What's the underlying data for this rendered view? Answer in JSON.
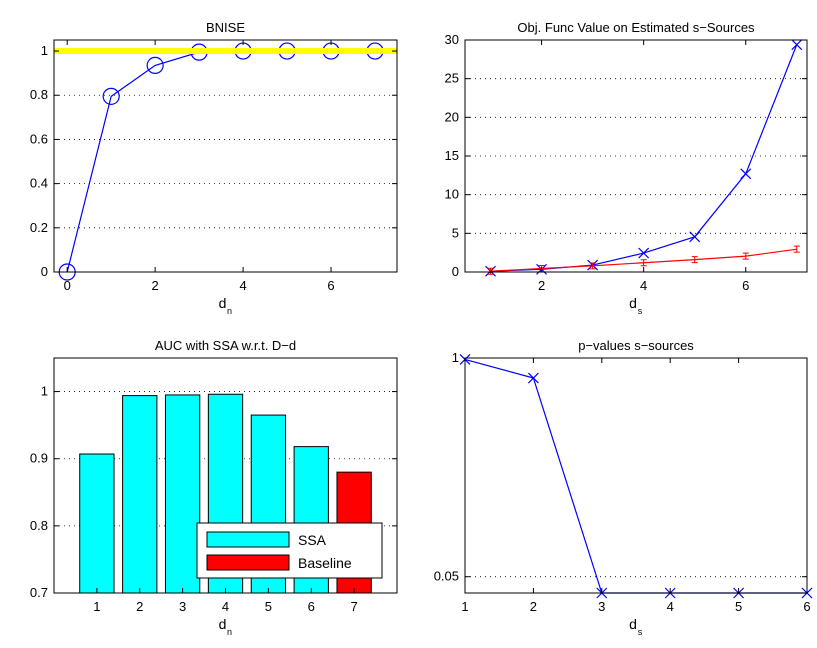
{
  "chart_data": [
    {
      "type": "line",
      "title": "BNISE",
      "xlabel": "d",
      "xlabel_sub": "n",
      "ylabel": "",
      "xlim": [
        -0.3,
        7.5
      ],
      "ylim": [
        0,
        1.05
      ],
      "xticks": [
        0,
        2,
        4,
        6
      ],
      "yticks": [
        0,
        0.2,
        0.4,
        0.6,
        0.8,
        1
      ],
      "ytick_labels": [
        "0",
        "0.2",
        "0.4",
        "0.6",
        "0.8",
        "1"
      ],
      "grid": "dotted",
      "series": [
        {
          "color": "#0000ff",
          "marker": "circle",
          "x": [
            0,
            1,
            2,
            3,
            4,
            5,
            6,
            7
          ],
          "y": [
            0,
            0.795,
            0.935,
            0.995,
            1,
            1,
            1,
            1
          ]
        },
        {
          "color": "#ffff00",
          "marker": "none",
          "x": [
            -0.3,
            7.5
          ],
          "y": [
            1,
            1
          ]
        }
      ]
    },
    {
      "type": "line",
      "title": "Obj. Func Value on Estimated s−Sources",
      "xlabel": "d",
      "xlabel_sub": "s",
      "ylabel": "",
      "xlim": [
        0.5,
        7.2
      ],
      "ylim": [
        0,
        30
      ],
      "xticks": [
        2,
        4,
        6
      ],
      "yticks": [
        0,
        5,
        10,
        15,
        20,
        25,
        30
      ],
      "ytick_labels": [
        "0",
        "5",
        "10",
        "15",
        "20",
        "25",
        "30"
      ],
      "grid": "dotted",
      "series": [
        {
          "color": "#0000ff",
          "marker": "x",
          "x": [
            1,
            2,
            3,
            4,
            5,
            6,
            7
          ],
          "y": [
            0.1,
            0.35,
            0.9,
            2.45,
            4.55,
            12.7,
            29.4
          ]
        },
        {
          "color": "#ff0000",
          "marker": "errorbar",
          "x": [
            1,
            2,
            3,
            4,
            5,
            6,
            7
          ],
          "y": [
            0.1,
            0.45,
            0.8,
            1.2,
            1.6,
            2.05,
            2.95
          ]
        }
      ]
    },
    {
      "type": "bar",
      "title": "AUC with SSA w.r.t. D−d",
      "xlabel": "d",
      "xlabel_sub": "n",
      "ylabel": "",
      "categories": [
        "1",
        "2",
        "3",
        "4",
        "5",
        "6",
        "7"
      ],
      "ylim": [
        0.7,
        1.05
      ],
      "yticks": [
        0.7,
        0.8,
        0.9,
        1
      ],
      "ytick_labels": [
        "0.7",
        "0.8",
        "0.9",
        "1"
      ],
      "grid": "dotted",
      "series": [
        {
          "name": "SSA",
          "color": "#00ffff",
          "values": [
            0.907,
            0.994,
            0.995,
            0.996,
            0.965,
            0.918,
            null
          ]
        },
        {
          "name": "Baseline",
          "color": "#ff0000",
          "values": [
            null,
            null,
            null,
            null,
            null,
            null,
            0.88
          ]
        }
      ],
      "legend": {
        "position": "lower-right",
        "entries": [
          "SSA",
          "Baseline"
        ]
      }
    },
    {
      "type": "line",
      "title": "p−values s−sources",
      "xlabel": "d",
      "xlabel_sub": "s",
      "ylabel": "",
      "yscale": "log",
      "xlim": [
        1,
        6
      ],
      "ylim": [
        0.04,
        1
      ],
      "xticks": [
        1,
        2,
        3,
        4,
        5,
        6
      ],
      "yticks": [
        0.05,
        1
      ],
      "ytick_labels": [
        "0.05",
        "1"
      ],
      "grid": "dotted",
      "series": [
        {
          "color": "#0000ff",
          "marker": "x",
          "x": [
            1,
            2,
            3,
            4,
            5,
            6
          ],
          "y": [
            0.98,
            0.76,
            0.04,
            0.04,
            0.04,
            0.04
          ]
        }
      ]
    }
  ]
}
